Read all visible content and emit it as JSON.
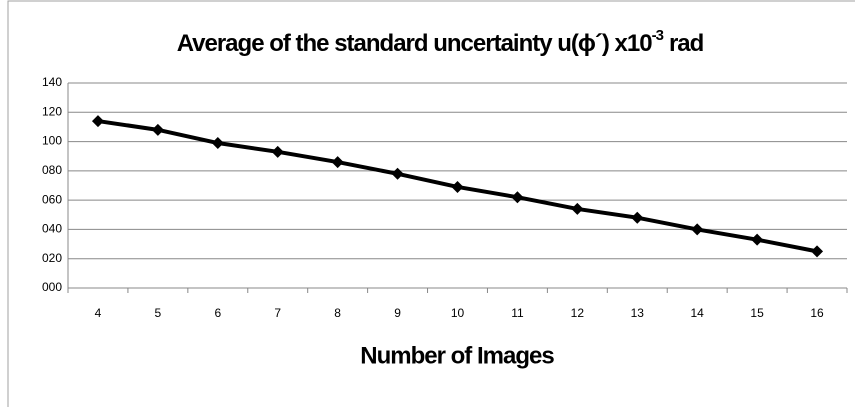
{
  "chart_data": {
    "type": "line",
    "title": {
      "text": "Average of the standard uncertainty u(ϕ´) x10",
      "superscript": "-3",
      "suffix": "rad"
    },
    "x_label": "Number of Images",
    "categories": [
      "4",
      "5",
      "6",
      "7",
      "8",
      "9",
      "10",
      "11",
      "12",
      "13",
      "14",
      "15",
      "16"
    ],
    "series": [
      {
        "color": "#000000",
        "values": [
          114,
          108,
          99,
          93,
          86,
          78,
          69,
          62,
          54,
          48,
          40,
          33,
          25
        ]
      }
    ],
    "ylim": [
      0,
      140
    ],
    "yticks": [
      {
        "value": 0,
        "label": "000"
      },
      {
        "value": 20,
        "label": "020"
      },
      {
        "value": 40,
        "label": "040"
      },
      {
        "value": 60,
        "label": "060"
      },
      {
        "value": 80,
        "label": "080"
      },
      100,
      120,
      140
    ],
    "grid": true
  }
}
